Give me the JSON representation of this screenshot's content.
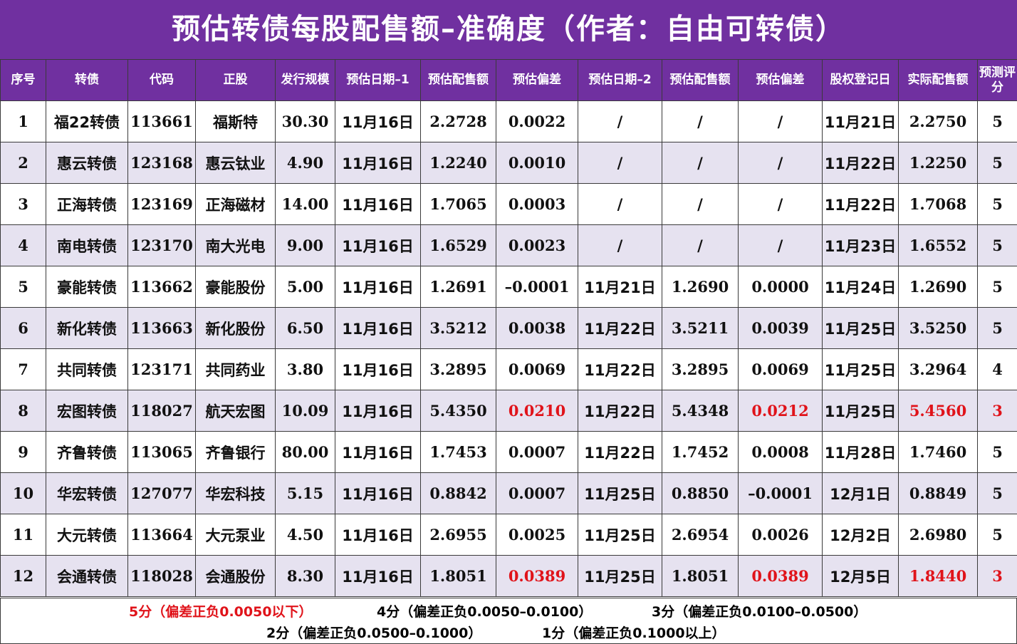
{
  "title": "预估转债每股配售额–准确度（作者：自由可转债）",
  "headers": [
    "序号",
    "转债",
    "代码",
    "正股",
    "发行规模",
    "预估日期–1",
    "预估配售额",
    "预估偏差",
    "预估日期–2",
    "预估配售额",
    "预估偏差",
    "股权登记日",
    "实际配售额",
    "预测评分"
  ],
  "rows": [
    [
      "1",
      "福22转债",
      "113661",
      "福斯特",
      "30.30",
      "11月16日",
      "2.2728",
      "0.0022",
      "/",
      "/",
      "/",
      "11月21日",
      "2.2750",
      "5"
    ],
    [
      "2",
      "惠云转债",
      "123168",
      "惠云钛业",
      "4.90",
      "11月16日",
      "1.2240",
      "0.0010",
      "/",
      "/",
      "/",
      "11月22日",
      "1.2250",
      "5"
    ],
    [
      "3",
      "正海转债",
      "123169",
      "正海磁材",
      "14.00",
      "11月16日",
      "1.7065",
      "0.0003",
      "/",
      "/",
      "/",
      "11月22日",
      "1.7068",
      "5"
    ],
    [
      "4",
      "南电转债",
      "123170",
      "南大光电",
      "9.00",
      "11月16日",
      "1.6529",
      "0.0023",
      "/",
      "/",
      "/",
      "11月23日",
      "1.6552",
      "5"
    ],
    [
      "5",
      "豪能转债",
      "113662",
      "豪能股份",
      "5.00",
      "11月16日",
      "1.2691",
      "–0.0001",
      "11月21日",
      "1.2690",
      "0.0000",
      "11月24日",
      "1.2690",
      "5"
    ],
    [
      "6",
      "新化转债",
      "113663",
      "新化股份",
      "6.50",
      "11月16日",
      "3.5212",
      "0.0038",
      "11月22日",
      "3.5211",
      "0.0039",
      "11月25日",
      "3.5250",
      "5"
    ],
    [
      "7",
      "共同转债",
      "123171",
      "共同药业",
      "3.80",
      "11月16日",
      "3.2895",
      "0.0069",
      "11月22日",
      "3.2895",
      "0.0069",
      "11月25日",
      "3.2964",
      "4"
    ],
    [
      "8",
      "宏图转债",
      "118027",
      "航天宏图",
      "10.09",
      "11月16日",
      "5.4350",
      "0.0210",
      "11月22日",
      "5.4348",
      "0.0212",
      "11月25日",
      "5.4560",
      "3"
    ],
    [
      "9",
      "齐鲁转债",
      "113065",
      "齐鲁银行",
      "80.00",
      "11月16日",
      "1.7453",
      "0.0007",
      "11月22日",
      "1.7452",
      "0.0008",
      "11月28日",
      "1.7460",
      "5"
    ],
    [
      "10",
      "华宏转债",
      "127077",
      "华宏科技",
      "5.15",
      "11月16日",
      "0.8842",
      "0.0007",
      "11月25日",
      "0.8850",
      "–0.0001",
      "12月1日",
      "0.8849",
      "5"
    ],
    [
      "11",
      "大元转债",
      "113664",
      "大元泵业",
      "4.50",
      "11月16日",
      "2.6955",
      "0.0025",
      "11月25日",
      "2.6954",
      "0.0026",
      "12月2日",
      "2.6980",
      "5"
    ],
    [
      "12",
      "会通转债",
      "118028",
      "会通股份",
      "8.30",
      "11月16日",
      "1.8051",
      "0.0389",
      "11月25日",
      "1.8051",
      "0.0389",
      "12月5日",
      "1.8440",
      "3"
    ]
  ],
  "legend": {
    "score5": "5分（偏差正负0.0050以下）",
    "score4": "4分（偏差正负0.0050–0.0100）",
    "score3": "3分（偏差正负0.0100–0.0500）",
    "score2": "2分（偏差正负0.0500–0.1000）",
    "score1": "1分（偏差正负0.1000以上）"
  },
  "colors": {
    "header_bg": "#7030a0",
    "header_text": "#ffffff",
    "stripe": "#e6e2f0",
    "highlight": "#e0131a"
  }
}
